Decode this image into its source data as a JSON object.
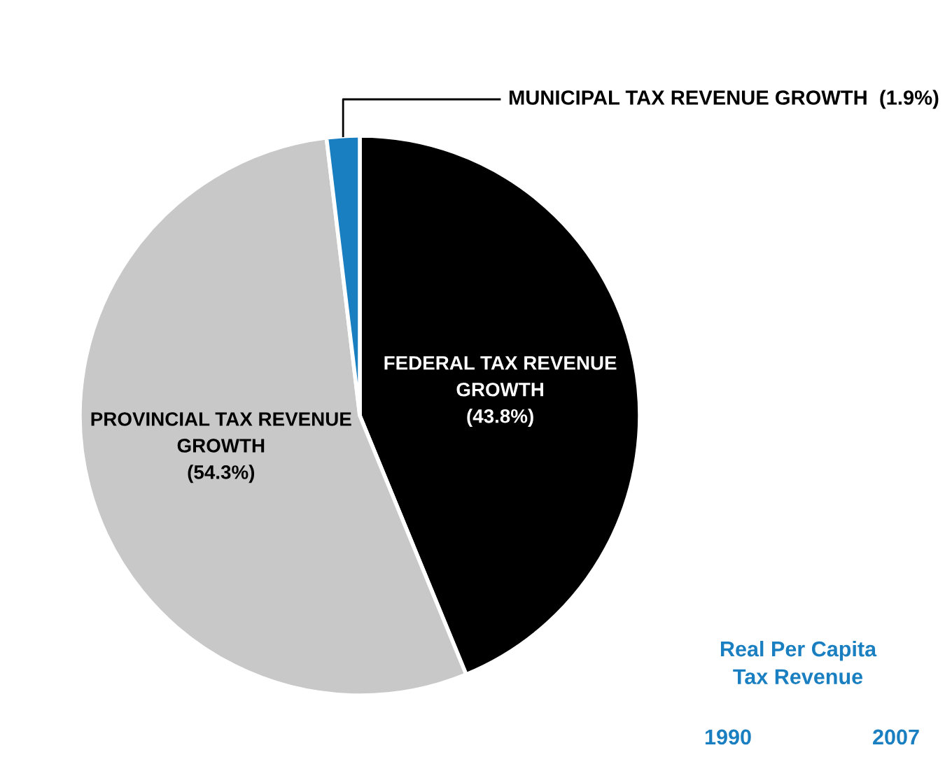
{
  "chart_data": {
    "type": "pie",
    "categories": [
      "FEDERAL TAX REVENUE GROWTH",
      "PROVINCIAL TAX REVENUE GROWTH",
      "MUNICIPAL TAX REVENUE GROWTH"
    ],
    "values": [
      43.8,
      54.3,
      1.9
    ],
    "value_labels": [
      "(43.8%)",
      "(54.3%)",
      "(1.9%)"
    ],
    "colors": [
      "#000000",
      "#c8c8c8",
      "#1a7fc1"
    ],
    "annotations": [
      "Real Per Capita Tax Revenue",
      "1990",
      "2007"
    ],
    "legend": false
  }
}
